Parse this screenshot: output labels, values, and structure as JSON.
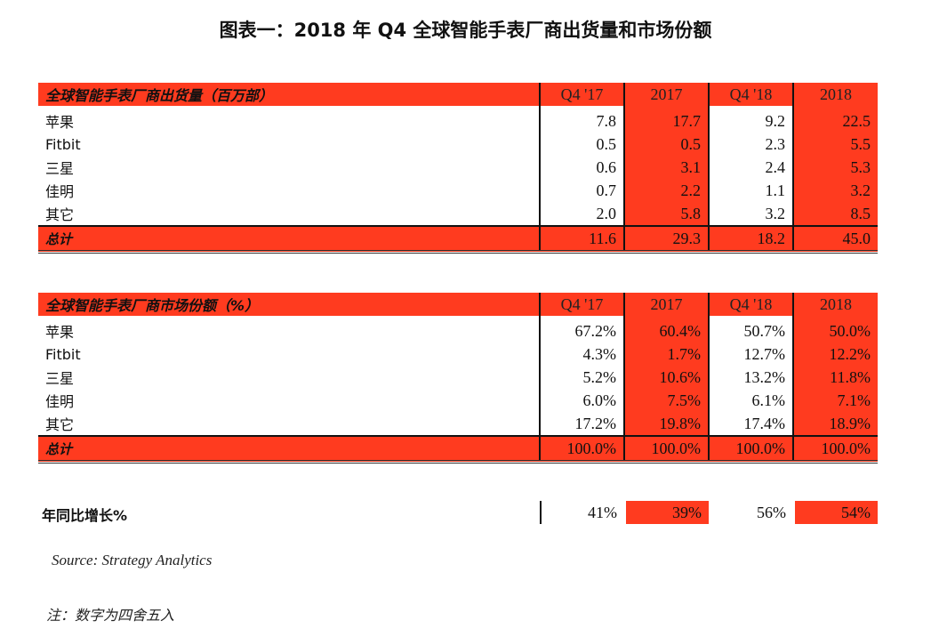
{
  "title": "图表一：2018 年 Q4 全球智能手表厂商出货量和市场份额",
  "columns": [
    "Q4 '17",
    "2017",
    "Q4 '18",
    "2018"
  ],
  "shipments": {
    "header": "全球智能手表厂商出货量（百万部）",
    "rows": [
      {
        "label": "苹果",
        "values": [
          "7.8",
          "17.7",
          "9.2",
          "22.5"
        ]
      },
      {
        "label": "Fitbit",
        "values": [
          "0.5",
          "0.5",
          "2.3",
          "5.5"
        ]
      },
      {
        "label": "三星",
        "values": [
          "0.6",
          "3.1",
          "2.4",
          "5.3"
        ]
      },
      {
        "label": "佳明",
        "values": [
          "0.7",
          "2.2",
          "1.1",
          "3.2"
        ]
      },
      {
        "label": "其它",
        "values": [
          "2.0",
          "5.8",
          "3.2",
          "8.5"
        ]
      }
    ],
    "total": {
      "label": "总计",
      "values": [
        "11.6",
        "29.3",
        "18.2",
        "45.0"
      ]
    }
  },
  "market_share": {
    "header": "全球智能手表厂商市场份额（%）",
    "rows": [
      {
        "label": "苹果",
        "values": [
          "67.2%",
          "60.4%",
          "50.7%",
          "50.0%"
        ]
      },
      {
        "label": "Fitbit",
        "values": [
          "4.3%",
          "1.7%",
          "12.7%",
          "12.2%"
        ]
      },
      {
        "label": "三星",
        "values": [
          "5.2%",
          "10.6%",
          "13.2%",
          "11.8%"
        ]
      },
      {
        "label": "佳明",
        "values": [
          "6.0%",
          "7.5%",
          "6.1%",
          "7.1%"
        ]
      },
      {
        "label": "其它",
        "values": [
          "17.2%",
          "19.8%",
          "17.4%",
          "18.9%"
        ]
      }
    ],
    "total": {
      "label": "总计",
      "values": [
        "100.0%",
        "100.0%",
        "100.0%",
        "100.0%"
      ]
    }
  },
  "yoy": {
    "label": "年同比增长%",
    "values": [
      "41%",
      "39%",
      "56%",
      "54%"
    ]
  },
  "source": "Source: Strategy Analytics",
  "note": "注：数字为四舍五入",
  "colors": {
    "accent": "#ff3b1f"
  }
}
